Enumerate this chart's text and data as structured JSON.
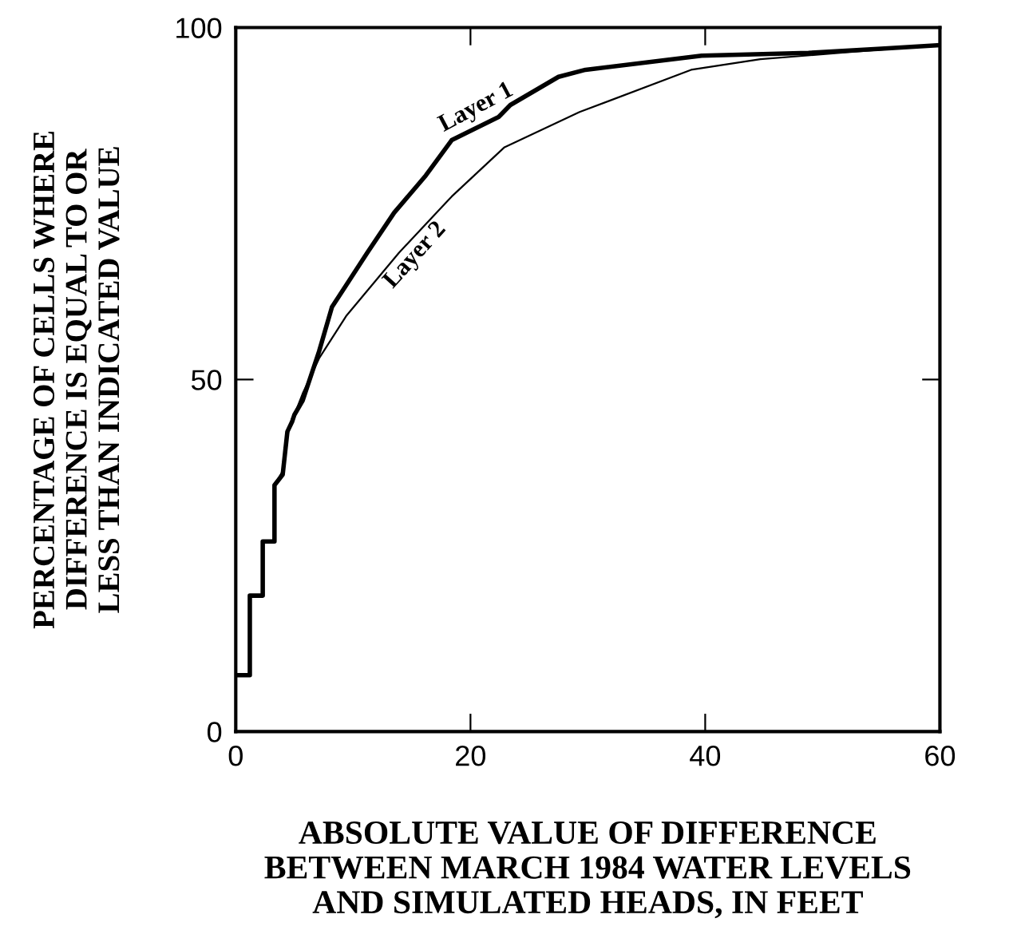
{
  "chart_data": {
    "type": "line",
    "xlabel": "ABSOLUTE VALUE OF DIFFERENCE\nBETWEEN MARCH 1984 WATER LEVELS\nAND SIMULATED HEADS, IN FEET",
    "ylabel": "PERCENTAGE OF CELLS WHERE\nDIFFERENCE IS EQUAL TO OR\nLESS THAN INDICATED VALUE",
    "xlim": [
      0,
      60
    ],
    "ylim": [
      0,
      100
    ],
    "xticks": [
      0,
      20,
      40,
      60
    ],
    "yticks": [
      0,
      50,
      100
    ],
    "grid": false,
    "legend": false,
    "marker": "none",
    "line_style": "solid",
    "series": [
      {
        "name": "Layer 1",
        "color": "#000000",
        "x": [
          0,
          1.2,
          1.2,
          2.3,
          2.3,
          3.3,
          3.3,
          4,
          4.4,
          4.8,
          5,
          5.7,
          7.1,
          8.2,
          9.1,
          11.2,
          13.5,
          16.2,
          18.4,
          22.4,
          23.4,
          27.5,
          29.8,
          39.7,
          48.8,
          55,
          60
        ],
        "values": [
          8,
          8,
          19.3,
          19.3,
          27,
          27,
          35,
          36.5,
          42.6,
          44,
          45,
          47,
          54,
          60.3,
          62.6,
          68,
          73.7,
          79,
          84,
          87.3,
          89,
          93,
          94,
          96,
          96.4,
          97,
          97.5
        ]
      },
      {
        "name": "Layer 2",
        "color": "#000000",
        "x": [
          0,
          1.2,
          1.2,
          2.3,
          2.3,
          3.3,
          3.3,
          4,
          4.4,
          4.8,
          5,
          5.7,
          7.1,
          9.4,
          13.9,
          18.4,
          22.9,
          29.3,
          38.8,
          44.7,
          51.5,
          60
        ],
        "values": [
          8,
          8,
          19.3,
          19.3,
          27,
          27,
          35,
          37,
          42,
          44.5,
          45,
          48,
          53,
          59,
          68,
          76,
          83,
          88,
          94,
          95.5,
          96.4,
          97.5
        ]
      }
    ]
  }
}
